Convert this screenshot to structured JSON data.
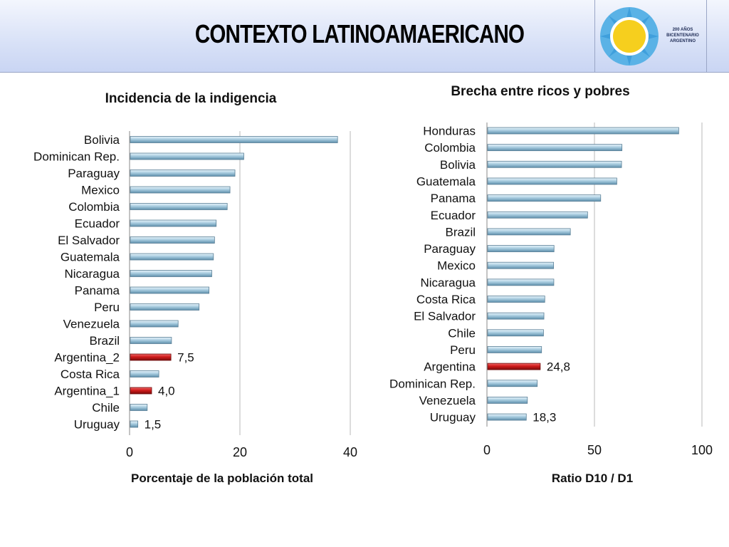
{
  "header": {
    "title": "CONTEXTO LATINOAMAERICANO",
    "logo_lines": [
      "200 AÑOS",
      "BICENTENARIO",
      "ARGENTINO"
    ]
  },
  "colors": {
    "bar_fill": "#a9cde0",
    "bar_highlight": "#d01a1a",
    "header_bg": "#d8e1f7"
  },
  "chart_data": [
    {
      "type": "bar",
      "orientation": "horizontal",
      "title": "Incidencia  de la indigencia",
      "xlabel": "Porcentaje de la población total",
      "xlim": [
        0,
        40
      ],
      "xticks": [
        0,
        20,
        40
      ],
      "grid": true,
      "categories": [
        "Bolivia",
        "Dominican Rep.",
        "Paraguay",
        "Mexico",
        "Colombia",
        "Ecuador",
        "El Salvador",
        "Guatemala",
        "Nicaragua",
        "Panama",
        "Peru",
        "Venezuela",
        "Brazil",
        "Argentina_2",
        "Costa Rica",
        "Argentina_1",
        "Chile",
        "Uruguay"
      ],
      "values": [
        37.7,
        20.7,
        19.1,
        18.2,
        17.7,
        15.7,
        15.4,
        15.2,
        14.9,
        14.4,
        12.6,
        8.8,
        7.6,
        7.5,
        5.3,
        4.0,
        3.2,
        1.5
      ],
      "highlight": [
        "Argentina_2",
        "Argentina_1"
      ],
      "data_labels": [
        {
          "category": "Argentina_2",
          "label": "7,5"
        },
        {
          "category": "Argentina_1",
          "label": "4,0"
        },
        {
          "category": "Uruguay",
          "label": "1,5"
        }
      ]
    },
    {
      "type": "bar",
      "orientation": "horizontal",
      "title": "Brecha entre ricos y pobres",
      "xlabel": "Ratio D10 / D1",
      "xlim": [
        0,
        100
      ],
      "xticks": [
        0,
        50,
        100
      ],
      "grid": true,
      "categories": [
        "Honduras",
        "Colombia",
        "Bolivia",
        "Guatemala",
        "Panama",
        "Ecuador",
        "Brazil",
        "Paraguay",
        "Mexico",
        "Nicaragua",
        "Costa Rica",
        "El Salvador",
        "Chile",
        "Peru",
        "Argentina",
        "Dominican Rep.",
        "Venezuela",
        "Uruguay"
      ],
      "values": [
        89.2,
        62.8,
        62.6,
        60.4,
        52.9,
        46.8,
        38.8,
        31.2,
        31.0,
        31.1,
        26.9,
        26.5,
        26.3,
        25.4,
        24.8,
        23.4,
        18.8,
        18.3
      ],
      "highlight": [
        "Argentina"
      ],
      "data_labels": [
        {
          "category": "Argentina",
          "label": "24,8"
        },
        {
          "category": "Uruguay",
          "label": "18,3"
        }
      ]
    }
  ]
}
